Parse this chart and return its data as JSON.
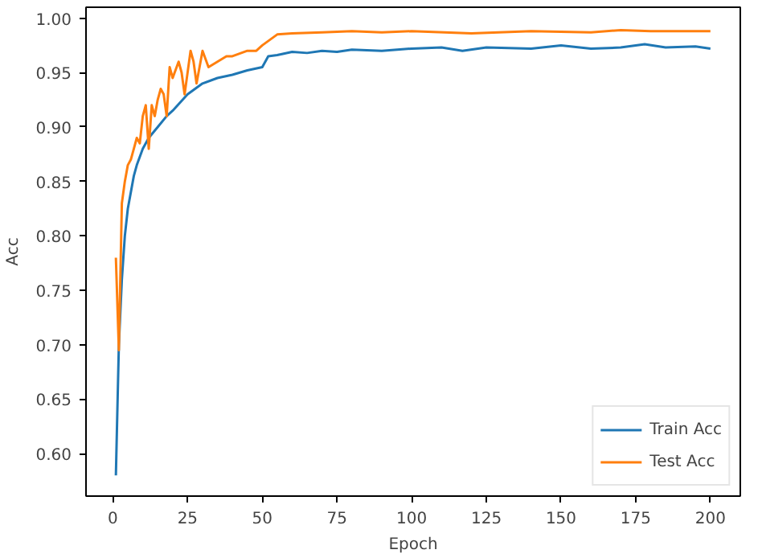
{
  "chart_data": {
    "type": "line",
    "xlabel": "Epoch",
    "ylabel": "Acc",
    "xlim": [
      -9,
      210
    ],
    "ylim": [
      0.561,
      1.01
    ],
    "xticks": [
      0,
      25,
      50,
      75,
      100,
      125,
      150,
      175,
      200
    ],
    "yticks": [
      {
        "value": 0.6,
        "label": "0.60"
      },
      {
        "value": 0.65,
        "label": "0.65"
      },
      {
        "value": 0.7,
        "label": "0.70"
      },
      {
        "value": 0.75,
        "label": "0.75"
      },
      {
        "value": 0.8,
        "label": "0.80"
      },
      {
        "value": 0.85,
        "label": "0.85"
      },
      {
        "value": 0.9,
        "label": "0.90"
      },
      {
        "value": 0.95,
        "label": "0.95"
      },
      {
        "value": 1.0,
        "label": "1.00"
      }
    ],
    "grid": false,
    "legend": "bottom right",
    "line_style": "solid",
    "marker": "none",
    "series": [
      {
        "name": "Train Acc",
        "color": "#1f77b4",
        "x": [
          1,
          2,
          3,
          4,
          5,
          6,
          7,
          8,
          10,
          12,
          15,
          18,
          20,
          25,
          30,
          35,
          40,
          45,
          50,
          52,
          55,
          60,
          65,
          70,
          75,
          80,
          90,
          100,
          110,
          117,
          125,
          140,
          150,
          160,
          170,
          178,
          185,
          195,
          200
        ],
        "values": [
          0.58,
          0.7,
          0.76,
          0.8,
          0.825,
          0.84,
          0.855,
          0.865,
          0.88,
          0.89,
          0.9,
          0.91,
          0.915,
          0.93,
          0.94,
          0.945,
          0.948,
          0.952,
          0.955,
          0.965,
          0.966,
          0.969,
          0.968,
          0.97,
          0.969,
          0.971,
          0.97,
          0.972,
          0.973,
          0.97,
          0.973,
          0.972,
          0.975,
          0.972,
          0.973,
          0.976,
          0.973,
          0.974,
          0.972
        ]
      },
      {
        "name": "Test Acc",
        "color": "#ff7f0e",
        "x": [
          1,
          2,
          3,
          4,
          5,
          6,
          7,
          8,
          9,
          10,
          11,
          12,
          13,
          14,
          15,
          16,
          17,
          18,
          19,
          20,
          22,
          23,
          24,
          26,
          27,
          28,
          30,
          32,
          35,
          38,
          40,
          45,
          48,
          50,
          55,
          60,
          70,
          80,
          90,
          100,
          120,
          140,
          160,
          170,
          180,
          190,
          200
        ],
        "values": [
          0.78,
          0.695,
          0.83,
          0.85,
          0.865,
          0.87,
          0.88,
          0.89,
          0.885,
          0.91,
          0.92,
          0.88,
          0.92,
          0.91,
          0.925,
          0.935,
          0.93,
          0.91,
          0.955,
          0.945,
          0.96,
          0.95,
          0.93,
          0.97,
          0.96,
          0.94,
          0.97,
          0.955,
          0.96,
          0.965,
          0.965,
          0.97,
          0.97,
          0.975,
          0.985,
          0.986,
          0.987,
          0.988,
          0.987,
          0.988,
          0.986,
          0.988,
          0.987,
          0.989,
          0.988,
          0.988,
          0.988
        ]
      }
    ]
  }
}
